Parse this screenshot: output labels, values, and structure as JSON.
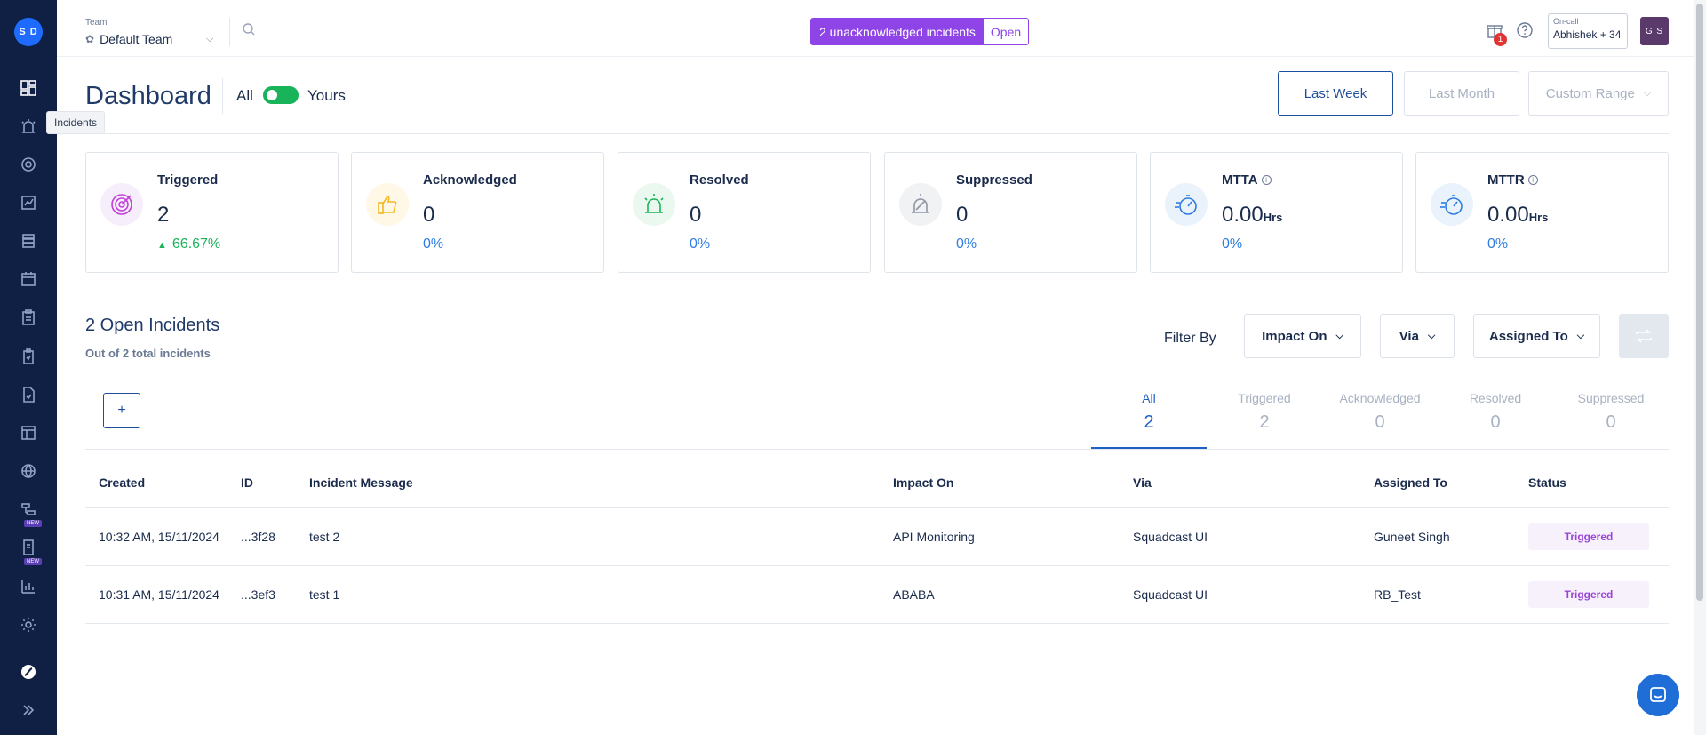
{
  "sidebar": {
    "avatar_initials": "S D",
    "tooltip": "Incidents",
    "new_badge": "NEW",
    "icons": [
      "dashboard-icon",
      "incidents-icon",
      "services-icon",
      "analytics-icon",
      "stack-icon",
      "calendar-icon",
      "clipboard-icon",
      "clipboard-check-icon",
      "document-check-icon",
      "table-icon",
      "globe-icon",
      "workflow-icon",
      "runbook-icon",
      "reports-icon",
      "settings-icon",
      "brand-logo-icon",
      "expand-icon"
    ]
  },
  "header": {
    "team_label": "Team",
    "team_value": "Default Team",
    "unack_label": "2 unacknowledged incidents",
    "unack_open": "Open",
    "gift_badge": "1",
    "oncall_label": "On-call",
    "oncall_value": "Abhishek + 34",
    "user_initials": "G S"
  },
  "dashboard": {
    "title": "Dashboard",
    "toggle_all": "All",
    "toggle_yours": "Yours",
    "toggle_on": true,
    "ranges": [
      "Last Week",
      "Last Month",
      "Custom Range"
    ],
    "active_range": "Last Week"
  },
  "cards": [
    {
      "label": "Triggered",
      "value": "2",
      "unit": "",
      "pct": "66.67%",
      "trend": "up",
      "icon": "target-icon",
      "color": "#c23fd8"
    },
    {
      "label": "Acknowledged",
      "value": "0",
      "unit": "",
      "pct": "0%",
      "icon": "thumbs-up-icon",
      "color": "#f2b81f"
    },
    {
      "label": "Resolved",
      "value": "0",
      "unit": "",
      "pct": "0%",
      "icon": "siren-icon",
      "color": "#19b45a"
    },
    {
      "label": "Suppressed",
      "value": "0",
      "unit": "",
      "pct": "0%",
      "icon": "suppressed-siren-icon",
      "color": "#8e96a3"
    },
    {
      "label": "MTTA",
      "value": "0.00",
      "unit": "Hrs",
      "pct": "0%",
      "icon": "stopwatch-icon",
      "color": "#2f7de1"
    },
    {
      "label": "MTTR",
      "value": "0.00",
      "unit": "Hrs",
      "pct": "0%",
      "icon": "stopwatch-icon",
      "color": "#2f7de1"
    }
  ],
  "incidents": {
    "title": "2 Open Incidents",
    "subtitle": "Out of 2 total incidents",
    "filter_label": "Filter By",
    "filters": [
      "Impact On",
      "Via",
      "Assigned To"
    ],
    "add_label": "+",
    "tabs": [
      {
        "label": "All",
        "count": "2"
      },
      {
        "label": "Triggered",
        "count": "2"
      },
      {
        "label": "Acknowledged",
        "count": "0"
      },
      {
        "label": "Resolved",
        "count": "0"
      },
      {
        "label": "Suppressed",
        "count": "0"
      }
    ],
    "columns": [
      "Created",
      "ID",
      "Incident Message",
      "Impact On",
      "Via",
      "Assigned To",
      "Status"
    ],
    "rows": [
      {
        "created": "10:32 AM, 15/11/2024",
        "id": "...3f28",
        "message": "test 2",
        "impact": "API Monitoring",
        "via": "Squadcast UI",
        "assigned": "Guneet Singh",
        "status": "Triggered"
      },
      {
        "created": "10:31 AM, 15/11/2024",
        "id": "...3ef3",
        "message": "test 1",
        "impact": "ABABA",
        "via": "Squadcast UI",
        "assigned": "RB_Test",
        "status": "Triggered"
      }
    ]
  }
}
